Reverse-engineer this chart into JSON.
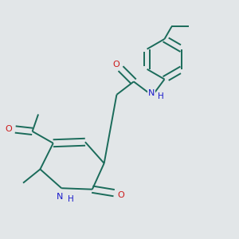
{
  "bg_color": "#e2e6e8",
  "bond_color": "#1a6b5a",
  "n_color": "#1a1acc",
  "o_color": "#cc1a1a",
  "bond_width": 1.4,
  "figsize": [
    3.0,
    3.0
  ],
  "dpi": 100,
  "xlim": [
    0,
    10
  ],
  "ylim": [
    0,
    10
  ]
}
